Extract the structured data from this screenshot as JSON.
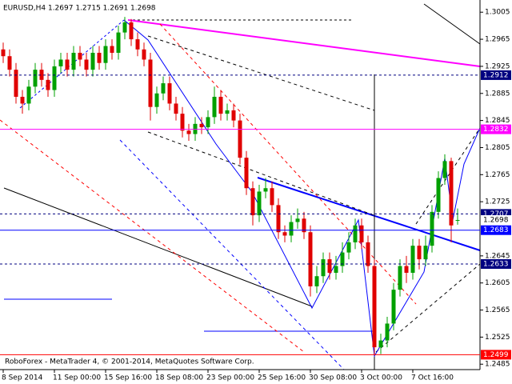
{
  "chart_data": {
    "type": "candlestick",
    "title": "EURUSD,H4  1.2697 1.2715 1.2691 1.2698",
    "footer": "RoboForex - MetaTrader 4, © 2001-2014, MetaQuotes Software Corp.",
    "up_color": "#00a000",
    "down_color": "#e00000",
    "open": [
      1.295,
      1.294,
      1.292,
      1.288,
      1.287,
      1.2895,
      1.292,
      1.2905,
      1.289,
      1.2925,
      1.2935,
      1.292,
      1.2945,
      1.2935,
      1.292,
      1.2945,
      1.293,
      1.2955,
      1.2945,
      1.2975,
      1.299,
      1.2965,
      1.295,
      1.2935,
      1.2865,
      1.2885,
      1.29,
      1.287,
      1.2855,
      1.283,
      1.2825,
      1.284,
      1.2835,
      1.285,
      1.288,
      1.2855,
      1.286,
      1.2845,
      1.279,
      1.2745,
      1.2705,
      1.274,
      1.2745,
      1.272,
      1.268,
      1.2675,
      1.2695,
      1.27,
      1.268,
      1.26,
      1.2615,
      1.264,
      1.262,
      1.263,
      1.265,
      1.2665,
      1.269,
      1.2665,
      1.263,
      1.251,
      1.252,
      1.2545,
      1.2595,
      1.263,
      1.262,
      1.266,
      1.264,
      1.266,
      1.271,
      1.276,
      1.2785,
      1.2697
    ],
    "high": [
      1.296,
      1.295,
      1.293,
      1.289,
      1.2905,
      1.293,
      1.293,
      1.2915,
      1.2935,
      1.2945,
      1.2945,
      1.2955,
      1.2955,
      1.2945,
      1.2955,
      1.2955,
      1.2965,
      1.2965,
      1.2985,
      1.2998,
      1.2995,
      1.2975,
      1.296,
      1.2945,
      1.2895,
      1.291,
      1.291,
      1.288,
      1.2865,
      1.284,
      1.285,
      1.285,
      1.286,
      1.2895,
      1.289,
      1.287,
      1.287,
      1.2855,
      1.28,
      1.2755,
      1.275,
      1.276,
      1.2755,
      1.273,
      1.269,
      1.2705,
      1.2715,
      1.271,
      1.269,
      1.263,
      1.265,
      1.265,
      1.2645,
      1.2665,
      1.268,
      1.27,
      1.27,
      1.2675,
      1.264,
      1.253,
      1.2555,
      1.2605,
      1.264,
      1.2645,
      1.267,
      1.267,
      1.2675,
      1.272,
      1.277,
      1.2795,
      1.279,
      1.2715
    ],
    "low": [
      1.293,
      1.291,
      1.287,
      1.2855,
      1.286,
      1.2885,
      1.2895,
      1.288,
      1.288,
      1.2915,
      1.291,
      1.291,
      1.2925,
      1.291,
      1.291,
      1.292,
      1.292,
      1.2935,
      1.2935,
      1.2965,
      1.2955,
      1.294,
      1.2925,
      1.2845,
      1.2855,
      1.2875,
      1.286,
      1.2845,
      1.282,
      1.2815,
      1.2815,
      1.2825,
      1.2825,
      1.284,
      1.2845,
      1.2845,
      1.2835,
      1.278,
      1.2735,
      1.269,
      1.2695,
      1.273,
      1.271,
      1.267,
      1.2665,
      1.2665,
      1.2685,
      1.267,
      1.2585,
      1.259,
      1.2605,
      1.261,
      1.261,
      1.262,
      1.264,
      1.2655,
      1.2655,
      1.262,
      1.2499,
      1.25,
      1.251,
      1.2535,
      1.2585,
      1.2605,
      1.261,
      1.2625,
      1.263,
      1.265,
      1.27,
      1.275,
      1.2665,
      1.2691
    ],
    "close": [
      1.294,
      1.292,
      1.288,
      1.287,
      1.2895,
      1.292,
      1.2905,
      1.289,
      1.2925,
      1.2935,
      1.292,
      1.2945,
      1.2935,
      1.292,
      1.2945,
      1.293,
      1.2955,
      1.2945,
      1.2975,
      1.299,
      1.2965,
      1.295,
      1.2935,
      1.2865,
      1.2885,
      1.29,
      1.287,
      1.2855,
      1.283,
      1.2825,
      1.284,
      1.2835,
      1.285,
      1.288,
      1.2855,
      1.286,
      1.2845,
      1.279,
      1.2745,
      1.2705,
      1.274,
      1.2745,
      1.272,
      1.268,
      1.2675,
      1.2695,
      1.27,
      1.268,
      1.26,
      1.2615,
      1.264,
      1.262,
      1.263,
      1.265,
      1.2665,
      1.269,
      1.2665,
      1.263,
      1.251,
      1.252,
      1.2545,
      1.2595,
      1.263,
      1.262,
      1.266,
      1.264,
      1.266,
      1.271,
      1.276,
      1.2785,
      1.269,
      1.2698
    ],
    "xlim": [
      -0.5,
      74.5
    ],
    "xticks": [
      {
        "value": 0,
        "label": "8 Sep 2014"
      },
      {
        "value": 8,
        "label": "11 Sep 00:00"
      },
      {
        "value": 16,
        "label": "15 Sep 16:00"
      },
      {
        "value": 24,
        "label": "18 Sep 08:00"
      },
      {
        "value": 32,
        "label": "23 Sep 00:00"
      },
      {
        "value": 40,
        "label": "25 Sep 16:00"
      },
      {
        "value": 48,
        "label": "30 Sep 08:00"
      },
      {
        "value": 56,
        "label": "3 Oct 00:00"
      },
      {
        "value": 64,
        "label": "7 Oct 16:00"
      }
    ],
    "ylim": [
      1.2477,
      1.3023
    ],
    "yticks": [
      1.3005,
      1.2965,
      1.2925,
      1.2885,
      1.2845,
      1.2805,
      1.2765,
      1.2725,
      1.2645,
      1.2605,
      1.2565,
      1.2525,
      1.2485
    ],
    "levels": [
      {
        "value": 1.2912,
        "color": "#000080",
        "dashed": true
      },
      {
        "value": 1.2832,
        "color": "#ff00ff",
        "dashed": false
      },
      {
        "value": 1.2707,
        "color": "#000080",
        "dashed": true
      },
      {
        "value": 1.2683,
        "color": "#0000ff",
        "dashed": false
      },
      {
        "value": 1.2633,
        "color": "#000080",
        "dashed": true
      },
      {
        "value": 1.2499,
        "color": "#ff0000",
        "dashed": false
      }
    ],
    "last_price": 1.2698
  }
}
